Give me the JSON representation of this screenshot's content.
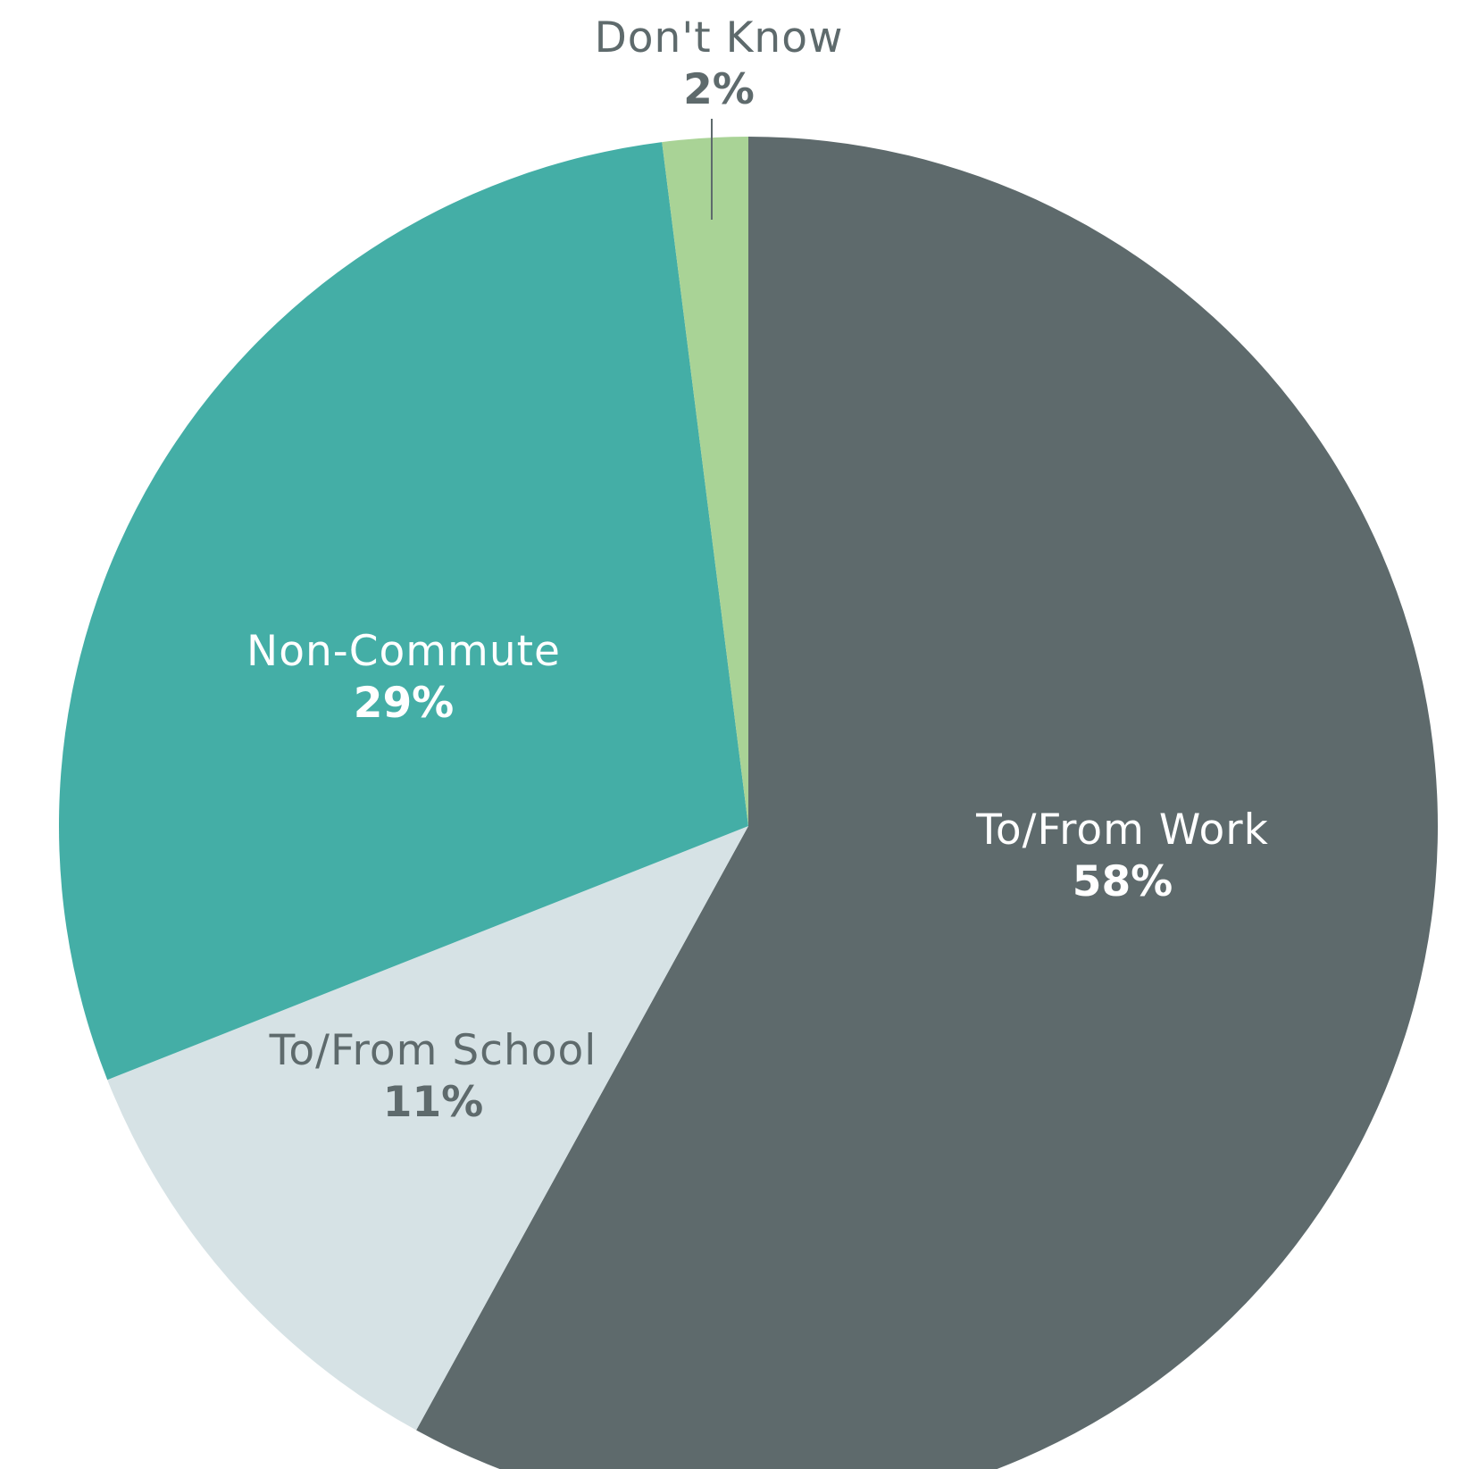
{
  "chart_data": {
    "type": "pie",
    "slices": [
      {
        "label": "To/From Work",
        "value": 58,
        "value_label": "58%",
        "color": "#5e6a6c"
      },
      {
        "label": "To/From School",
        "value": 11,
        "value_label": "11%",
        "color": "#d6e2e5"
      },
      {
        "label": "Non-Commute",
        "value": 29,
        "value_label": "29%",
        "color": "#44aea6"
      },
      {
        "label": "Don't Know",
        "value": 2,
        "value_label": "2%",
        "color": "#a9d396"
      }
    ],
    "start": "12 o'clock",
    "direction": "clockwise",
    "legend": "none"
  }
}
